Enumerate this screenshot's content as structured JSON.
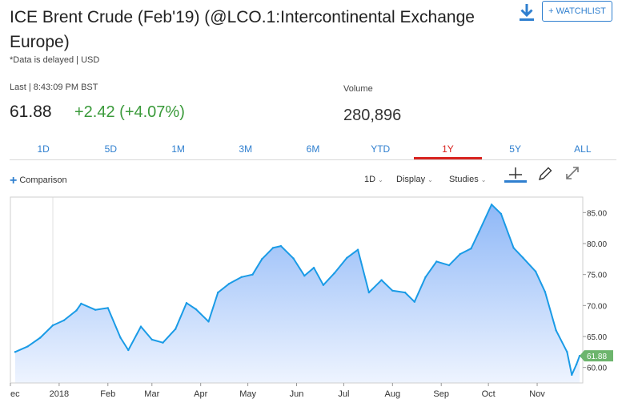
{
  "header": {
    "title": "ICE Brent Crude (Feb'19) (@LCO.1:Intercontinental Exchange Europe)",
    "delayed_note": "*Data is delayed | USD",
    "watchlist_label": "+ WATCHLIST",
    "download_icon": "download-icon"
  },
  "quote": {
    "last_label": "Last | 8:43:09 PM BST",
    "last_price": "61.88",
    "change": "+2.42 (+4.07%)",
    "change_color": "#3a9a3a",
    "volume_label": "Volume",
    "volume_value": "280,896"
  },
  "range_tabs": [
    {
      "label": "1D"
    },
    {
      "label": "5D"
    },
    {
      "label": "1M"
    },
    {
      "label": "3M"
    },
    {
      "label": "6M"
    },
    {
      "label": "YTD"
    },
    {
      "label": "1Y",
      "active": true
    },
    {
      "label": "5Y"
    },
    {
      "label": "ALL"
    }
  ],
  "toolbar": {
    "comparison_label": "Comparison",
    "interval_label": "1D",
    "display_label": "Display",
    "studies_label": "Studies",
    "icons": [
      "crosshair-icon",
      "pencil-icon",
      "expand-icon"
    ]
  },
  "colors": {
    "accent": "#2f7fcf",
    "active_tab": "#d8231f",
    "line": "#1a9be6",
    "area_top": "#8fb8f7",
    "area_bottom": "#eef4ff",
    "last_badge": "#6db56d"
  },
  "chart_data": {
    "type": "area",
    "x_ticks": [
      "ec",
      "2018",
      "Feb",
      "Mar",
      "Apr",
      "May",
      "Jun",
      "Jul",
      "Aug",
      "Sep",
      "Oct",
      "Nov"
    ],
    "y_ticks": [
      "85.00",
      "80.00",
      "75.00",
      "70.00",
      "65.00",
      "60.00"
    ],
    "ylim": [
      57.5,
      87.5
    ],
    "last_value_label": "61.88",
    "series": [
      {
        "x": [
          "2017-12-04",
          "2017-12-12",
          "2017-12-20",
          "2017-12-28",
          "2018-01-04",
          "2018-01-12",
          "2018-01-15",
          "2018-01-24",
          "2018-02-01",
          "2018-02-09",
          "2018-02-14",
          "2018-02-22",
          "2018-03-01",
          "2018-03-08",
          "2018-03-16",
          "2018-03-23",
          "2018-03-29",
          "2018-04-06",
          "2018-04-12",
          "2018-04-19",
          "2018-04-27",
          "2018-05-04",
          "2018-05-10",
          "2018-05-17",
          "2018-05-22",
          "2018-05-30",
          "2018-06-06",
          "2018-06-12",
          "2018-06-18",
          "2018-06-25",
          "2018-07-03",
          "2018-07-10",
          "2018-07-17",
          "2018-07-25",
          "2018-08-01",
          "2018-08-09",
          "2018-08-15",
          "2018-08-22",
          "2018-08-29",
          "2018-09-06",
          "2018-09-13",
          "2018-09-20",
          "2018-09-25",
          "2018-10-03",
          "2018-10-09",
          "2018-10-17",
          "2018-10-23",
          "2018-10-31",
          "2018-11-06",
          "2018-11-13",
          "2018-11-20",
          "2018-11-23",
          "2018-11-26",
          "2018-11-28"
        ],
        "values": [
          62.5,
          63.4,
          64.8,
          66.8,
          67.6,
          69.2,
          70.3,
          69.3,
          69.6,
          64.8,
          62.8,
          66.6,
          64.5,
          64.0,
          66.2,
          70.4,
          69.4,
          67.4,
          72.1,
          73.5,
          74.6,
          75.0,
          77.5,
          79.3,
          79.6,
          77.6,
          74.8,
          76.1,
          73.3,
          75.2,
          77.7,
          79.0,
          72.1,
          74.1,
          72.4,
          72.1,
          70.6,
          74.6,
          77.1,
          76.5,
          78.3,
          79.2,
          81.9,
          86.3,
          84.8,
          79.3,
          77.7,
          75.5,
          72.2,
          66.0,
          62.5,
          58.8,
          60.5,
          61.88
        ]
      }
    ]
  }
}
